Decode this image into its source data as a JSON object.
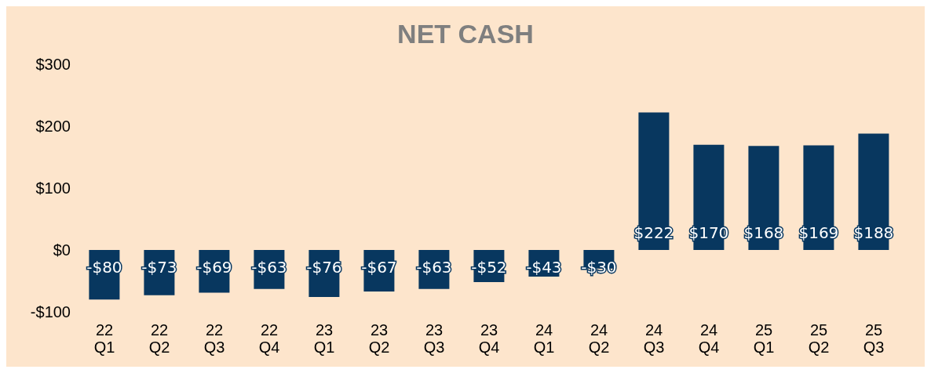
{
  "chart_data": {
    "type": "bar",
    "title": "NET CASH",
    "categories": [
      "22 Q1",
      "22 Q2",
      "22 Q3",
      "22 Q4",
      "23 Q1",
      "23 Q2",
      "23 Q3",
      "23 Q4",
      "24 Q1",
      "24 Q2",
      "24 Q3",
      "24 Q4",
      "25 Q1",
      "25 Q2",
      "25 Q3"
    ],
    "values": [
      -80,
      -73,
      -69,
      -63,
      -76,
      -67,
      -63,
      -52,
      -43,
      -30,
      222,
      170,
      168,
      169,
      188
    ],
    "value_labels": [
      "-$80",
      "-$73",
      "-$69",
      "-$63",
      "-$76",
      "-$67",
      "-$63",
      "-$52",
      "-$43",
      "-$30",
      "$222",
      "$170",
      "$168",
      "$169",
      "$188"
    ],
    "color": "#08375f",
    "ylim": [
      -100,
      300
    ],
    "yticks": [
      {
        "value": -100,
        "label": "-$100"
      },
      {
        "value": 0,
        "label": "$0"
      },
      {
        "value": 100,
        "label": "$100"
      },
      {
        "value": 200,
        "label": "$200"
      },
      {
        "value": 300,
        "label": "$300"
      }
    ],
    "grid": false,
    "legend": false
  }
}
